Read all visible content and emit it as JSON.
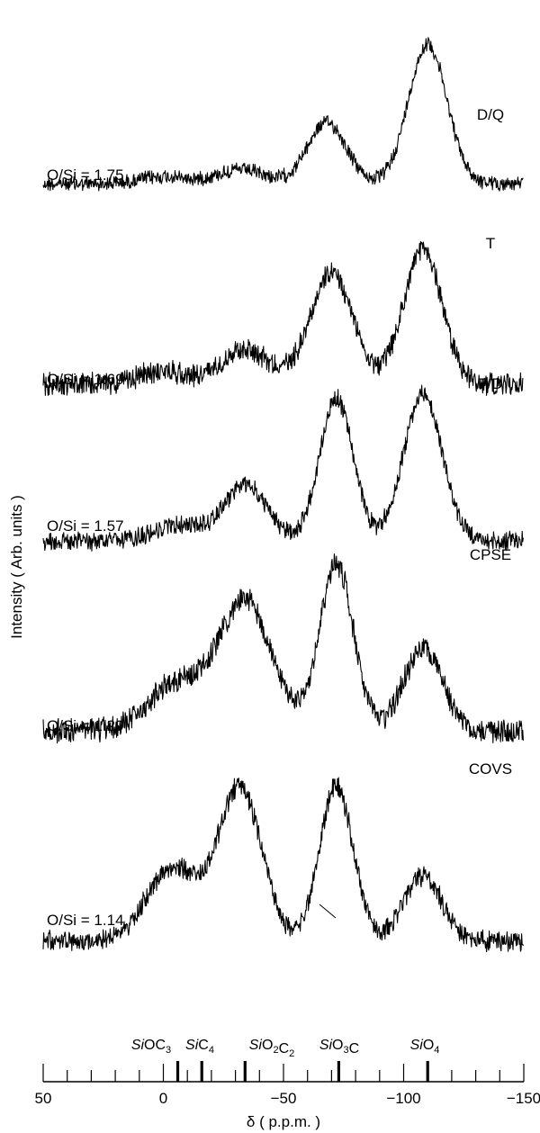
{
  "chart_data": {
    "type": "line",
    "xlabel": "δ ( p.p.m. )",
    "ylabel": "Intensity ( Arb. units )",
    "xlim": [
      50,
      -150
    ],
    "x_ticks": [
      50,
      0,
      -50,
      -100,
      -150
    ],
    "x_tick_labels": [
      "50",
      "0",
      "−50",
      "−100",
      "−150"
    ],
    "grid": false,
    "legend": "none",
    "reference_lines": [
      {
        "label": "SiOC3",
        "x": -6
      },
      {
        "label": "SiC4",
        "x": -16
      },
      {
        "label": "SiO2C2",
        "x": -34
      },
      {
        "label": "SiO3C",
        "x": -73
      },
      {
        "label": "SiO4",
        "x": -110
      }
    ],
    "series": [
      {
        "name": "D/Q",
        "annotation": "O/Si = 1.75",
        "baseline": 0.05,
        "peaks": [
          {
            "center": -110,
            "height": 1.0,
            "width": 8
          },
          {
            "center": -68,
            "height": 0.44,
            "width": 8
          },
          {
            "center": -32,
            "height": 0.1,
            "width": 10
          },
          {
            "center": 0,
            "height": 0.05,
            "width": 10
          }
        ]
      },
      {
        "name": "T",
        "annotation": "O/Si = 1.69",
        "baseline": 0.1,
        "peaks": [
          {
            "center": -108,
            "height": 0.83,
            "width": 8
          },
          {
            "center": -70,
            "height": 0.68,
            "width": 9
          },
          {
            "center": -34,
            "height": 0.22,
            "width": 10
          },
          {
            "center": 0,
            "height": 0.08,
            "width": 10
          }
        ]
      },
      {
        "name": "T/D",
        "annotation": "O/Si = 1.57",
        "baseline": 0.05,
        "peaks": [
          {
            "center": -108,
            "height": 0.95,
            "width": 8
          },
          {
            "center": -72,
            "height": 0.92,
            "width": 7
          },
          {
            "center": -34,
            "height": 0.36,
            "width": 9
          },
          {
            "center": -6,
            "height": 0.1,
            "width": 10
          }
        ]
      },
      {
        "name": "CPSE",
        "annotation": "O/Si = 1.29",
        "baseline": 0.12,
        "peaks": [
          {
            "center": -108,
            "height": 0.48,
            "width": 8
          },
          {
            "center": -72,
            "height": 0.98,
            "width": 7
          },
          {
            "center": -34,
            "height": 0.76,
            "width": 11
          },
          {
            "center": -5,
            "height": 0.28,
            "width": 11
          }
        ]
      },
      {
        "name": "COVS",
        "annotation": "O/Si = 1.14",
        "baseline": 0.05,
        "peaks": [
          {
            "center": -108,
            "height": 0.4,
            "width": 8
          },
          {
            "center": -72,
            "height": 0.96,
            "width": 7
          },
          {
            "center": -32,
            "height": 0.94,
            "width": 9
          },
          {
            "center": -4,
            "height": 0.45,
            "width": 11
          }
        ]
      }
    ]
  }
}
